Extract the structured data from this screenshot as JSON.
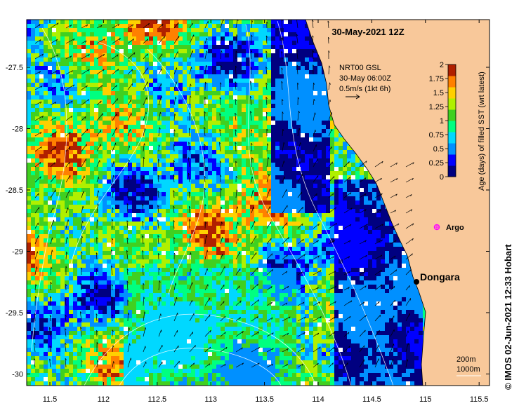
{
  "map": {
    "title": "30-May-2021 12Z",
    "current_info": {
      "line1": "NRT00 GSL",
      "line2": "30-May 06:00Z",
      "line3": "0.5m/s (1kt 6h)"
    },
    "colorbar": {
      "label": "Age (days) of filled SST (wrt latest)",
      "tick_labels": [
        "0",
        "0.25",
        "0.5",
        "0.75",
        "1",
        "1.25",
        "1.5",
        "1.75",
        "2"
      ],
      "colors": [
        "#000080",
        "#0000ff",
        "#0090ff",
        "#00d8ff",
        "#00ff80",
        "#40d020",
        "#b0f000",
        "#ffd000",
        "#ff8000",
        "#b02000"
      ]
    },
    "lat_ticks": [
      "-27.5",
      "-28",
      "-28.5",
      "-29",
      "-29.5",
      "-30"
    ],
    "lon_ticks": [
      "11.5",
      "112",
      "112.5",
      "113",
      "113.5",
      "114",
      "114.5",
      "115",
      "115.5"
    ],
    "labels": {
      "argo": "Argo",
      "dongara": "Dongara",
      "contour_200": "200m",
      "contour_1000": "1000m"
    },
    "credit": "©  IMOS 02-Jun-2021 12:33 Hobart",
    "colors": {
      "land": "#f8c89a",
      "argo": "#ff00ff",
      "contour": "#ffffff"
    }
  }
}
